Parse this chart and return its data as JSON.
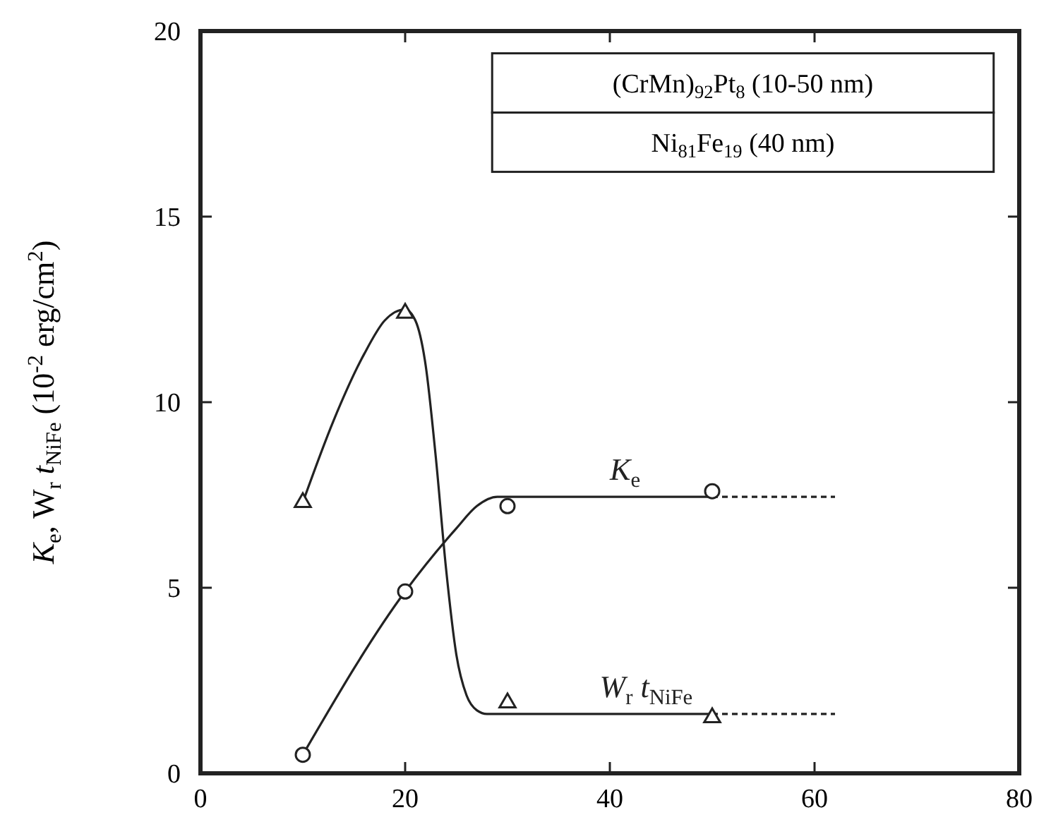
{
  "chart_data": {
    "type": "scatter",
    "ylabel": "K$_{e}$, W$_{r}$ t$_{NiFe}$  (10$^{-2}$ erg/cm$^{2}$)",
    "xlim": [
      0,
      80
    ],
    "xticks": [
      0,
      20,
      40,
      60,
      80
    ],
    "ylim": [
      0,
      20
    ],
    "yticks": [
      0,
      5,
      10,
      15,
      20
    ],
    "series": [
      {
        "marker": "circle",
        "color": "#222222",
        "x": [
          10,
          20,
          30,
          50
        ],
        "values": [
          0.5,
          4.9,
          7.2,
          7.6
        ]
      },
      {
        "marker": "triangle",
        "color": "#222222",
        "x": [
          10,
          20,
          30,
          50
        ],
        "values": [
          7.3,
          12.4,
          1.9,
          1.5
        ]
      },
      {
        "type": "line",
        "name": "K$_{e}$",
        "line_style": "solid",
        "color": "#222222",
        "x": [
          10,
          20,
          25,
          27,
          29,
          30,
          50
        ],
        "values": [
          0.5,
          4.9,
          6.6,
          7.2,
          7.45,
          7.45,
          7.45
        ]
      },
      {
        "type": "line",
        "line_style": "dashed",
        "color": "#222222",
        "x": [
          50,
          62
        ],
        "values": [
          7.45,
          7.45
        ]
      },
      {
        "type": "line",
        "name": "W$_{r}$ t$_{NiFe}$",
        "line_style": "solid",
        "color": "#222222",
        "x": [
          10,
          13,
          16,
          18,
          20,
          21,
          22,
          23,
          24,
          25,
          26,
          27,
          28,
          50
        ],
        "values": [
          7.3,
          9.5,
          11.3,
          12.2,
          12.5,
          12.2,
          11,
          8.5,
          5.5,
          3.2,
          2.1,
          1.7,
          1.6,
          1.6
        ]
      },
      {
        "type": "line",
        "line_style": "dashed",
        "color": "#222222",
        "x": [
          50,
          62
        ],
        "values": [
          1.6,
          1.6
        ]
      }
    ],
    "annotations": [
      "(CrMn)$_{92}$Pt$_{8}$ (10-50 nm)",
      "Ni$_{81}$Fe$_{19}$ (40 nm)"
    ]
  }
}
